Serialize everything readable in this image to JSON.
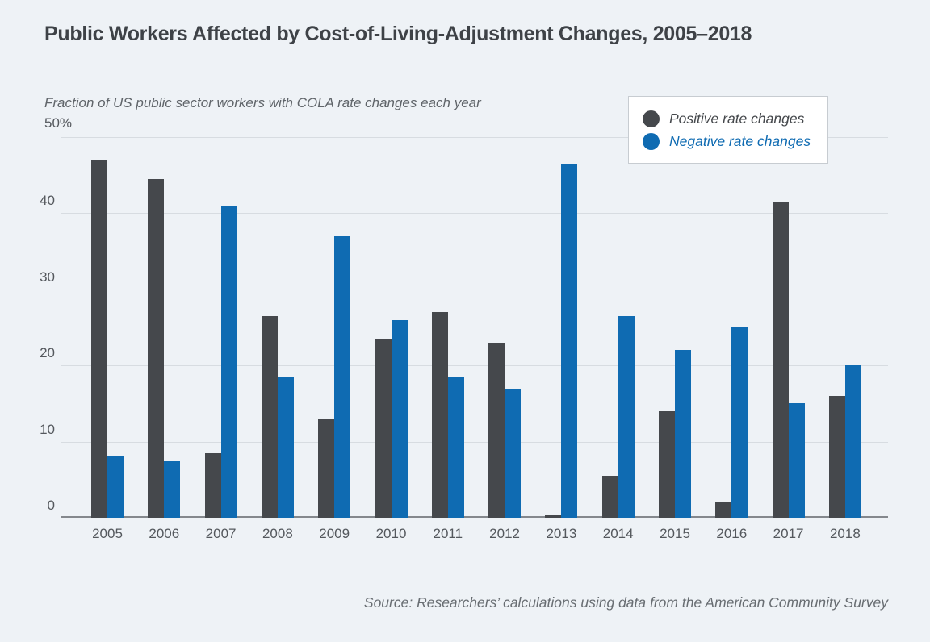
{
  "page": {
    "title": "Public Workers Affected by Cost-of-Living-Adjustment Changes, 2005–2018",
    "source_note": "Source: Researchers’ calculations using data from the American Community Survey"
  },
  "chart_data": {
    "type": "bar",
    "title": "Public Workers Affected by Cost-of-Living-Adjustment Changes, 2005–2018",
    "subtitle": "Fraction of US public sector workers with COLA rate changes each year",
    "y_axis": {
      "top_label": "50%",
      "unit": "%",
      "ticks": [
        0,
        10,
        20,
        30,
        40,
        50
      ],
      "ylim": [
        0,
        50
      ]
    },
    "categories": [
      "2005",
      "2006",
      "2007",
      "2008",
      "2009",
      "2010",
      "2011",
      "2012",
      "2013",
      "2014",
      "2015",
      "2016",
      "2017",
      "2018"
    ],
    "series": [
      {
        "name": "Positive rate changes",
        "color": "#45484c",
        "values": [
          47,
          44.5,
          8.5,
          26.5,
          13,
          23.5,
          27,
          23,
          0.3,
          5.5,
          14,
          2,
          41.5,
          16
        ]
      },
      {
        "name": "Negative rate changes",
        "color": "#0f6bb2",
        "values": [
          8,
          7.5,
          41,
          18.5,
          37,
          26,
          18.5,
          17,
          46.5,
          26.5,
          22,
          25,
          15,
          20
        ]
      }
    ],
    "legend_position": "top-right",
    "grid": true,
    "colors": {
      "background": "#eef2f6",
      "gridline": "#d7dce1",
      "axis_line": "#84888d",
      "title_text": "#3e4247",
      "subtitle_text": "#60656a",
      "tick_text": "#54585d",
      "source_text": "#686d72",
      "legend_border": "#c7ccd1",
      "legend_background": "#ffffff"
    }
  }
}
